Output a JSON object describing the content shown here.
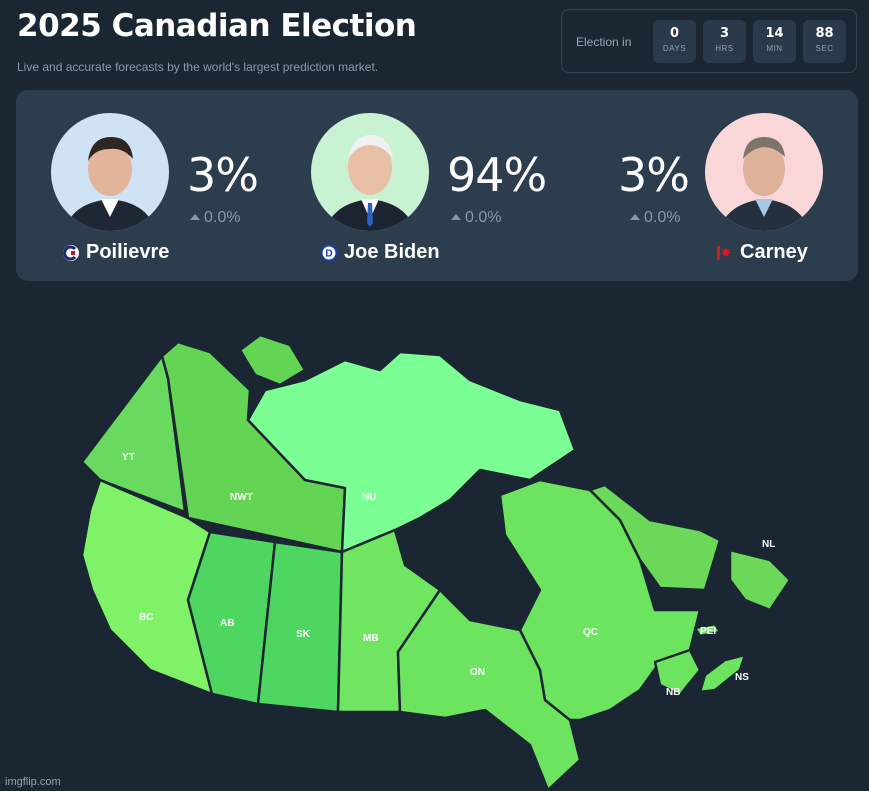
{
  "header": {
    "title": "2025 Canadian Election",
    "subtitle": "Live and accurate forecasts by the world's largest prediction market."
  },
  "countdown": {
    "label": "Election in",
    "units": [
      {
        "value": "0",
        "unit": "DAYS"
      },
      {
        "value": "3",
        "unit": "HRS"
      },
      {
        "value": "14",
        "unit": "MIN"
      },
      {
        "value": "88",
        "unit": "SEC"
      }
    ]
  },
  "candidates": [
    {
      "name": "Poilievre",
      "percent": "3%",
      "change": "0.0%",
      "party_icon": "conservative-icon",
      "avatar_bg": "#cfe3f5",
      "party_color": "#c8102e"
    },
    {
      "name": "Joe Biden",
      "percent": "94%",
      "change": "0.0%",
      "party_icon": "democrat-icon",
      "avatar_bg": "#c9f2d2",
      "party_color": "#1a3fa8"
    },
    {
      "name": "Carney",
      "percent": "3%",
      "change": "0.0%",
      "party_icon": "liberal-icon",
      "avatar_bg": "#f9d6d8",
      "party_color": "#d71920"
    }
  ],
  "map": {
    "regions": [
      {
        "code": "YT",
        "fill": "#69da5f"
      },
      {
        "code": "NWT",
        "fill": "#64d455"
      },
      {
        "code": "NU",
        "fill": "#7bff94"
      },
      {
        "code": "BC",
        "fill": "#7ff268"
      },
      {
        "code": "AB",
        "fill": "#4fd660"
      },
      {
        "code": "SK",
        "fill": "#4fd660"
      },
      {
        "code": "MB",
        "fill": "#6fe562"
      },
      {
        "code": "ON",
        "fill": "#6ce45f"
      },
      {
        "code": "QC",
        "fill": "#6ce45f"
      },
      {
        "code": "NL",
        "fill": "#6cd85a"
      },
      {
        "code": "PEI",
        "fill": "#6ce45f"
      },
      {
        "code": "NB",
        "fill": "#6ce45f"
      },
      {
        "code": "NS",
        "fill": "#6ce45f"
      }
    ]
  },
  "watermark": "imgflip.com"
}
